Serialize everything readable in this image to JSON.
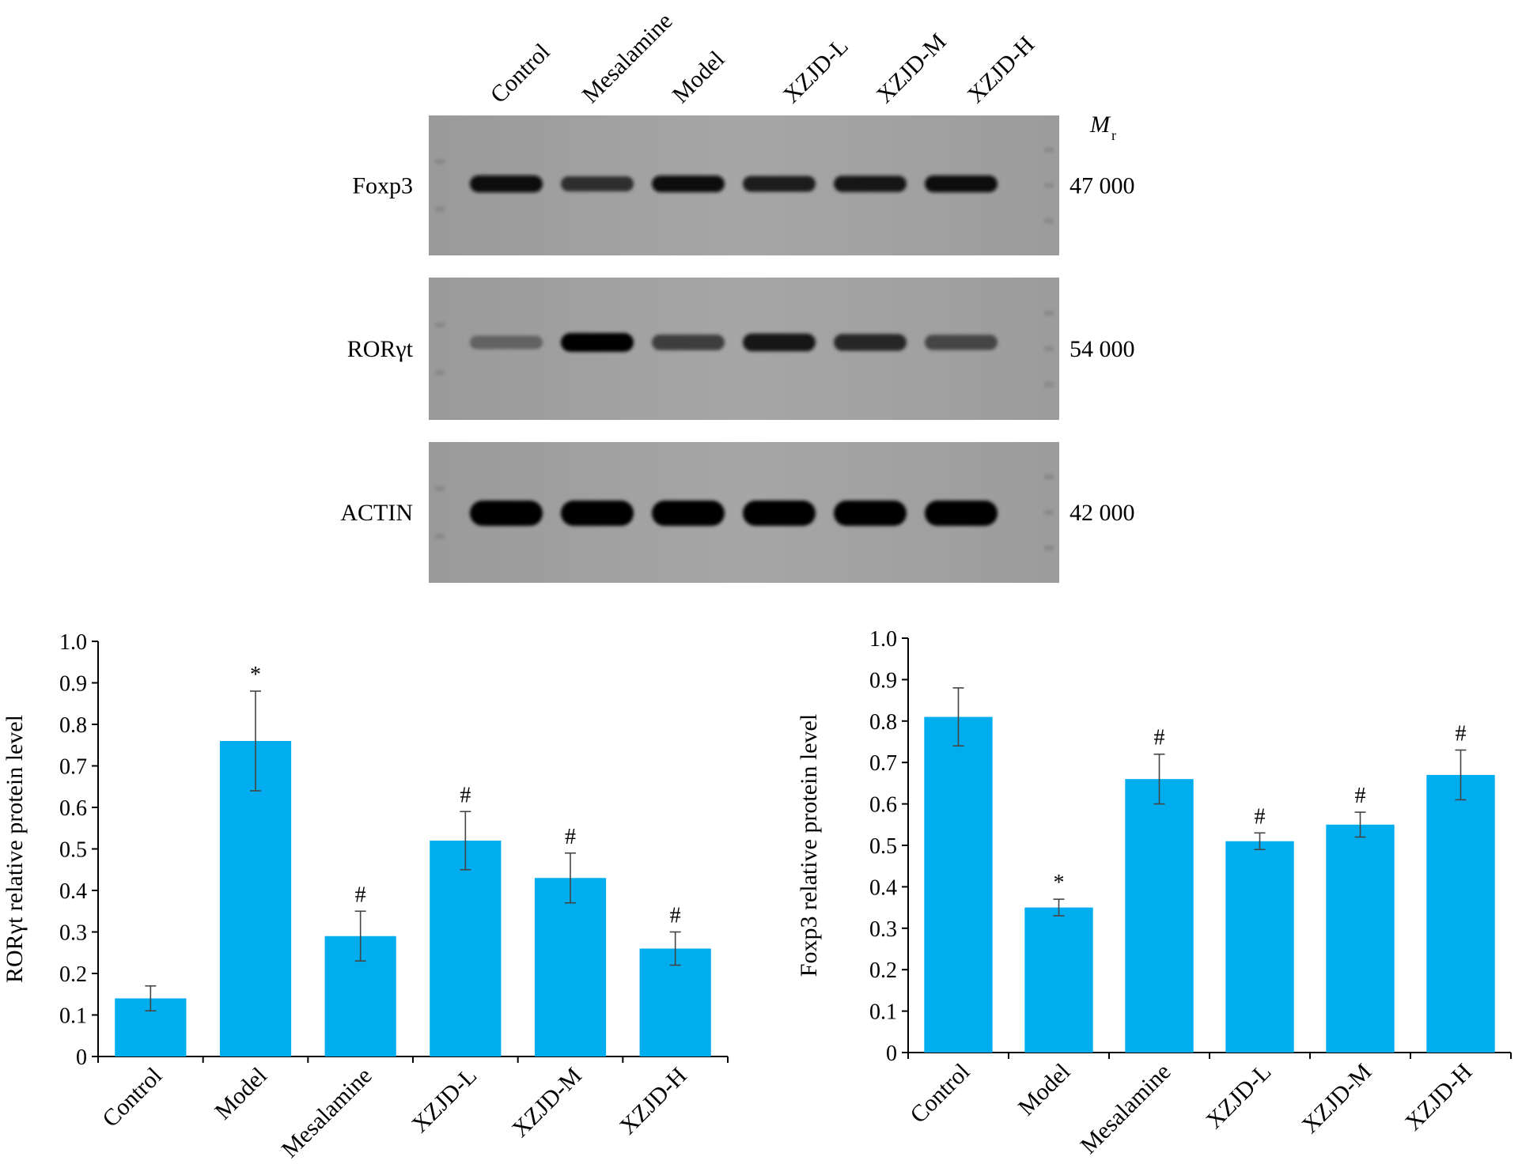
{
  "blot": {
    "lane_labels": [
      "Control",
      "Mesalamine",
      "Model",
      "XZJD-L",
      "XZJD-M",
      "XZJD-H"
    ],
    "mr_symbol": "M",
    "mr_subscript": "r",
    "rows": [
      {
        "name": "Foxp3",
        "mr": "47 000",
        "band_intensity": [
          0.95,
          0.7,
          0.9,
          0.8,
          0.85,
          0.92
        ]
      },
      {
        "name": "RORγt",
        "mr": "54 000",
        "band_intensity": [
          0.35,
          0.97,
          0.6,
          0.85,
          0.75,
          0.55
        ]
      },
      {
        "name": "ACTIN",
        "mr": "42 000",
        "band_intensity": [
          1.0,
          1.0,
          1.0,
          1.0,
          1.0,
          1.0
        ]
      }
    ]
  },
  "chart_data": [
    {
      "type": "bar",
      "categories": [
        "Control",
        "Model",
        "Mesalamine",
        "XZJD-L",
        "XZJD-M",
        "XZJD-H"
      ],
      "values": [
        0.14,
        0.76,
        0.29,
        0.52,
        0.43,
        0.26
      ],
      "errors": [
        0.03,
        0.12,
        0.06,
        0.07,
        0.06,
        0.04
      ],
      "annotations": [
        "",
        "*",
        "#",
        "#",
        "#",
        "#"
      ],
      "xlabel": "",
      "ylabel": "RORγt relative protein level",
      "ylim": [
        0,
        1.0
      ],
      "yticks": [
        "0",
        "0.1",
        "0.2",
        "0.3",
        "0.4",
        "0.5",
        "0.6",
        "0.7",
        "0.8",
        "0.9",
        "1.0"
      ],
      "bar_color": "#00AEEF",
      "grid": false
    },
    {
      "type": "bar",
      "categories": [
        "Control",
        "Model",
        "Mesalamine",
        "XZJD-L",
        "XZJD-M",
        "XZJD-H"
      ],
      "values": [
        0.81,
        0.35,
        0.66,
        0.51,
        0.55,
        0.67
      ],
      "errors": [
        0.07,
        0.02,
        0.06,
        0.02,
        0.03,
        0.06
      ],
      "annotations": [
        "",
        "*",
        "#",
        "#",
        "#",
        "#"
      ],
      "xlabel": "",
      "ylabel": "Foxp3 relative protein level",
      "ylim": [
        0,
        1.0
      ],
      "yticks": [
        "0",
        "0.1",
        "0.2",
        "0.3",
        "0.4",
        "0.5",
        "0.6",
        "0.7",
        "0.8",
        "0.9",
        "1.0"
      ],
      "bar_color": "#00AEEF",
      "grid": false
    }
  ]
}
